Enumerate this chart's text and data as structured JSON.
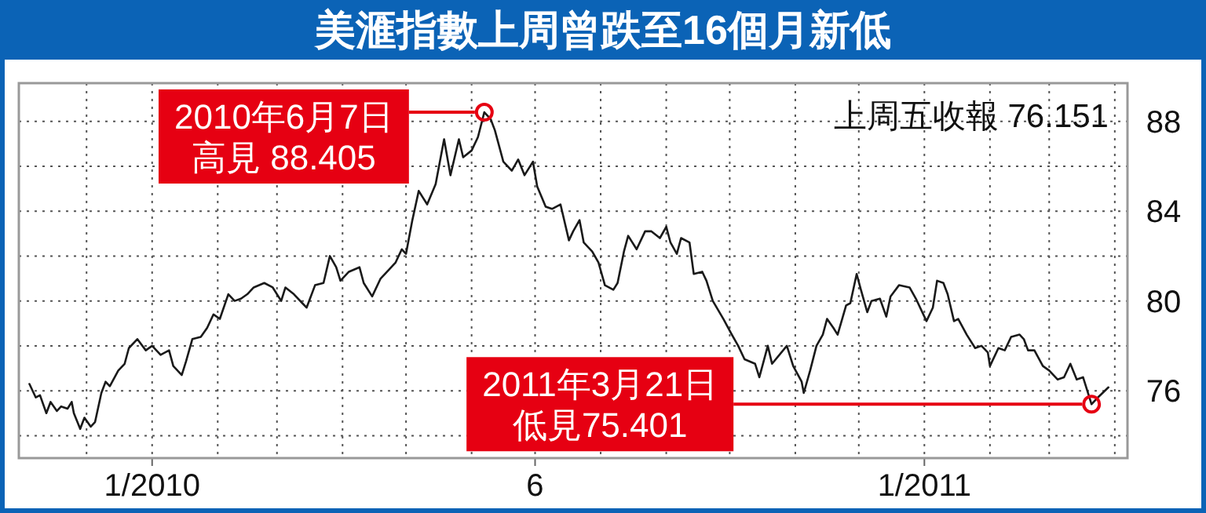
{
  "chart_data": {
    "type": "line",
    "title": "美滙指數上周曾跌至16個月新低",
    "annotations": [
      {
        "text": "2010年6月7日高見 88.405",
        "x": "2010-06-07",
        "y": 88.405
      },
      {
        "text": "2011年3月21日低見75.401",
        "x": "2011-03-21",
        "y": 75.401
      },
      "上周五收報 76.151"
    ],
    "x": [
      "2009-11-04",
      "2009-11-07",
      "2009-11-09",
      "2009-11-12",
      "2009-11-14",
      "2009-11-17",
      "2009-11-19",
      "2009-11-22",
      "2009-11-24",
      "2009-11-25",
      "2009-11-28",
      "2009-11-30",
      "2009-12-03",
      "2009-12-05",
      "2009-12-08",
      "2009-12-10",
      "2009-12-12",
      "2009-12-16",
      "2009-12-19",
      "2009-12-21",
      "2009-12-25",
      "2009-12-29",
      "2010-01-01",
      "2010-01-05",
      "2010-01-09",
      "2010-01-11",
      "2010-01-15",
      "2010-01-17",
      "2010-01-20",
      "2010-01-24",
      "2010-01-27",
      "2010-01-30",
      "2010-02-02",
      "2010-02-06",
      "2010-02-09",
      "2010-02-12",
      "2010-02-15",
      "2010-02-18",
      "2010-02-23",
      "2010-02-27",
      "2010-03-03",
      "2010-03-05",
      "2010-03-09",
      "2010-03-13",
      "2010-03-15",
      "2010-03-19",
      "2010-03-23",
      "2010-03-26",
      "2010-03-29",
      "2010-03-31",
      "2010-04-04",
      "2010-04-09",
      "2010-04-11",
      "2010-04-15",
      "2010-04-19",
      "2010-04-23",
      "2010-04-26",
      "2010-04-29",
      "2010-05-01",
      "2010-05-04",
      "2010-05-07",
      "2010-05-11",
      "2010-05-15",
      "2010-05-19",
      "2010-05-22",
      "2010-05-26",
      "2010-05-28",
      "2010-06-01",
      "2010-06-04",
      "2010-06-07",
      "2010-06-10",
      "2010-06-12",
      "2010-06-16",
      "2010-06-20",
      "2010-06-23",
      "2010-06-26",
      "2010-06-30",
      "2010-07-02",
      "2010-07-06",
      "2010-07-09",
      "2010-07-13",
      "2010-07-17",
      "2010-07-19",
      "2010-07-22",
      "2010-07-24",
      "2010-07-28",
      "2010-07-31",
      "2010-08-03",
      "2010-08-07",
      "2010-08-09",
      "2010-08-12",
      "2010-08-14",
      "2010-08-18",
      "2010-08-22",
      "2010-08-25",
      "2010-08-29",
      "2010-09-01",
      "2010-09-03",
      "2010-09-06",
      "2010-09-08",
      "2010-09-12",
      "2010-09-14",
      "2010-09-18",
      "2010-09-20",
      "2010-09-23",
      "2010-09-28",
      "2010-10-02",
      "2010-10-05",
      "2010-10-08",
      "2010-10-13",
      "2010-10-15",
      "2010-10-19",
      "2010-10-21",
      "2010-10-28",
      "2010-10-31",
      "2010-11-04",
      "2010-11-05",
      "2010-11-08",
      "2010-11-11",
      "2010-11-14",
      "2010-11-16",
      "2010-11-19",
      "2010-11-21",
      "2010-11-25",
      "2010-11-27",
      "2010-11-30",
      "2010-12-02",
      "2010-12-05",
      "2010-12-07",
      "2010-12-11",
      "2010-12-14",
      "2010-12-16",
      "2010-12-20",
      "2010-12-25",
      "2010-12-28",
      "2011-01-02",
      "2011-01-05",
      "2011-01-07",
      "2011-01-10",
      "2011-01-12",
      "2011-01-15",
      "2011-01-17",
      "2011-01-21",
      "2011-01-25",
      "2011-01-28",
      "2011-01-31",
      "2011-02-01",
      "2011-02-05",
      "2011-02-08",
      "2011-02-11",
      "2011-02-15",
      "2011-02-17",
      "2011-02-19",
      "2011-02-22",
      "2011-02-26",
      "2011-03-01",
      "2011-03-05",
      "2011-03-08",
      "2011-03-11",
      "2011-03-14",
      "2011-03-17",
      "2011-03-21",
      "2011-03-24",
      "2011-03-29"
    ],
    "series": [
      {
        "color": "#1a1a1a",
        "values": [
          76.3,
          75.7,
          75.8,
          75.0,
          75.5,
          75.1,
          75.3,
          75.2,
          75.5,
          75.0,
          74.3,
          74.8,
          74.4,
          74.6,
          75.9,
          76.4,
          76.2,
          76.9,
          77.2,
          77.9,
          78.3,
          77.8,
          78.0,
          77.6,
          77.8,
          77.1,
          76.7,
          77.3,
          78.3,
          78.4,
          78.8,
          79.4,
          79.2,
          80.3,
          80.0,
          80.1,
          80.3,
          80.6,
          80.8,
          80.6,
          80.0,
          80.6,
          80.3,
          79.9,
          79.7,
          80.7,
          80.8,
          82.0,
          81.5,
          80.9,
          81.3,
          81.5,
          80.8,
          80.2,
          81.0,
          81.4,
          81.7,
          82.3,
          82.1,
          83.6,
          84.9,
          84.3,
          85.2,
          87.2,
          85.6,
          87.2,
          86.4,
          86.7,
          87.3,
          88.405,
          88.1,
          87.6,
          86.2,
          85.8,
          86.3,
          85.6,
          86.2,
          85.1,
          84.2,
          84.1,
          84.3,
          82.7,
          83.1,
          83.6,
          82.6,
          82.2,
          81.7,
          80.7,
          80.5,
          80.8,
          82.2,
          82.9,
          82.3,
          83.1,
          83.1,
          82.8,
          83.3,
          82.6,
          82.1,
          82.8,
          82.6,
          81.2,
          81.3,
          80.9,
          80.0,
          79.2,
          78.5,
          78.0,
          77.4,
          77.2,
          76.6,
          78.0,
          77.2,
          78.0,
          77.1,
          76.4,
          75.9,
          76.9,
          78.0,
          78.5,
          79.2,
          78.8,
          78.5,
          79.8,
          79.9,
          81.2,
          80.5,
          79.5,
          80.0,
          80.1,
          79.3,
          80.2,
          80.7,
          80.6,
          80.1,
          79.1,
          79.7,
          80.9,
          80.8,
          80.3,
          79.1,
          79.2,
          78.5,
          77.9,
          78.0,
          77.7,
          77.1,
          77.9,
          77.8,
          78.4,
          78.5,
          78.3,
          77.8,
          77.8,
          77.1,
          76.9,
          76.5,
          76.6,
          77.2,
          76.5,
          76.6,
          75.401,
          75.7,
          76.151
        ]
      }
    ],
    "xlim": [
      "2009-10-30",
      "2011-04-07"
    ],
    "ylim": [
      73,
      89.7
    ],
    "xticks": [
      {
        "value": "2009-12-01",
        "label": null
      },
      {
        "value": "2010-01-01",
        "label": "1/2010"
      },
      {
        "value": "2010-02-01",
        "label": null
      },
      {
        "value": "2010-03-01",
        "label": null
      },
      {
        "value": "2010-04-01",
        "label": null
      },
      {
        "value": "2010-05-01",
        "label": null
      },
      {
        "value": "2010-06-01",
        "label": null
      },
      {
        "value": "2010-07-01",
        "label": "6"
      },
      {
        "value": "2010-08-01",
        "label": null
      },
      {
        "value": "2010-09-01",
        "label": null
      },
      {
        "value": "2010-10-01",
        "label": null
      },
      {
        "value": "2010-11-01",
        "label": null
      },
      {
        "value": "2010-12-01",
        "label": null
      },
      {
        "value": "2011-01-01",
        "label": "1/2011"
      },
      {
        "value": "2011-02-01",
        "label": null
      },
      {
        "value": "2011-03-01",
        "label": null
      },
      {
        "value": "2011-04-01",
        "label": null
      }
    ],
    "yticks": [
      {
        "value": 74,
        "label": null
      },
      76,
      {
        "value": 78,
        "label": null
      },
      80,
      {
        "value": 82,
        "label": null
      },
      84,
      {
        "value": 86,
        "label": null
      },
      88
    ],
    "grid": true
  }
}
